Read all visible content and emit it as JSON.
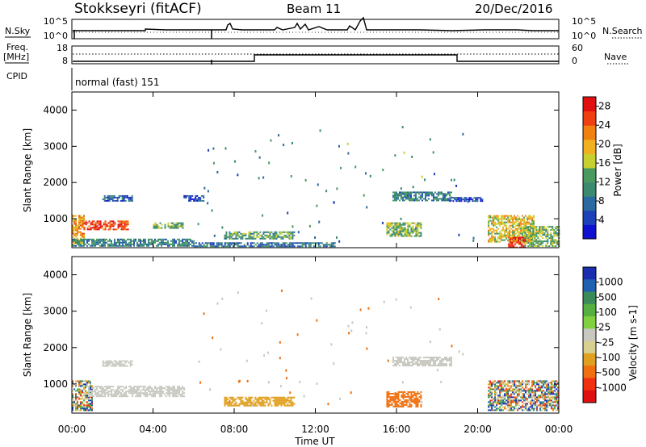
{
  "header": {
    "station": "Stokkseyri (fitACF)",
    "beam": "Beam 11",
    "date": "20/Dec/2016"
  },
  "status_panels": {
    "nsky_label": "N.Sky",
    "nsky_ticks": [
      "10^5",
      "10^0"
    ],
    "nsearch_label": "N.Search",
    "nsearch_ticks": [
      "10^5",
      "10^0"
    ],
    "freq_label_line1": "Freq.",
    "freq_label_line2": "[MHz]",
    "freq_ticks": [
      "18",
      "8"
    ],
    "nave_label": "Nave",
    "nave_ticks": [
      "60",
      "0"
    ],
    "cpid_label": "CPID",
    "cpid_text": "normal (fast) 151"
  },
  "colors": {
    "power_scale": [
      "#1010d0",
      "#1e40b8",
      "#2a6aa0",
      "#3a8a70",
      "#4a9a60",
      "#c8d030",
      "#f0b020",
      "#f08010",
      "#f04010",
      "#e01010"
    ],
    "velocity_scale": [
      "#1a2fb0",
      "#2060b0",
      "#3a8a5a",
      "#55b040",
      "#80d040",
      "#c8c8c0",
      "#d8d090",
      "#e0a020",
      "#f07010",
      "#f03010",
      "#e01010"
    ]
  },
  "chart_data": [
    {
      "type": "heatmap",
      "title": "Power",
      "xlabel": "",
      "ylabel": "Slant Range [km]",
      "x_ticks": [
        "00:00",
        "04:00",
        "08:00",
        "12:00",
        "16:00",
        "20:00",
        "00:00"
      ],
      "xlim_hours": [
        0,
        24
      ],
      "y_ticks": [
        1000,
        2000,
        3000,
        4000
      ],
      "ylim_km": [
        200,
        4500
      ],
      "colorbar_label": "Power [dB]",
      "colorbar_ticks": [
        4,
        8,
        12,
        16,
        20,
        24,
        28
      ],
      "colorbar_range": [
        0,
        30
      ],
      "regions": [
        {
          "t0": 0.0,
          "t1": 0.6,
          "r0": 300,
          "r1": 1100,
          "level": 20
        },
        {
          "t0": 0.5,
          "t1": 2.8,
          "r0": 700,
          "r1": 950,
          "level": 26
        },
        {
          "t0": 0.0,
          "t1": 6.0,
          "r0": 250,
          "r1": 450,
          "level": 10
        },
        {
          "t0": 1.5,
          "t1": 3.0,
          "r0": 1500,
          "r1": 1650,
          "level": 6
        },
        {
          "t0": 4.0,
          "t1": 5.5,
          "r0": 750,
          "r1": 900,
          "level": 14
        },
        {
          "t0": 5.5,
          "t1": 6.5,
          "r0": 1500,
          "r1": 1650,
          "level": 5
        },
        {
          "t0": 7.5,
          "t1": 11.0,
          "r0": 450,
          "r1": 650,
          "level": 12
        },
        {
          "t0": 6.0,
          "t1": 13.0,
          "r0": 250,
          "r1": 350,
          "level": 8
        },
        {
          "t0": 15.5,
          "t1": 17.2,
          "r0": 500,
          "r1": 900,
          "level": 14
        },
        {
          "t0": 15.8,
          "t1": 18.7,
          "r0": 1500,
          "r1": 1750,
          "level": 10
        },
        {
          "t0": 18.6,
          "t1": 20.2,
          "r0": 1500,
          "r1": 1600,
          "level": 5
        },
        {
          "t0": 20.5,
          "t1": 22.8,
          "r0": 350,
          "r1": 1100,
          "level": 18
        },
        {
          "t0": 21.5,
          "t1": 22.3,
          "r0": 200,
          "r1": 500,
          "level": 28
        },
        {
          "t0": 22.3,
          "t1": 24.0,
          "r0": 250,
          "r1": 800,
          "level": 14
        }
      ]
    },
    {
      "type": "heatmap",
      "title": "Velocity",
      "xlabel": "Time UT",
      "ylabel": "Slant Range [km]",
      "x_ticks": [
        "00:00",
        "04:00",
        "08:00",
        "12:00",
        "16:00",
        "20:00",
        "00:00"
      ],
      "xlim_hours": [
        0,
        24
      ],
      "y_ticks": [
        1000,
        2000,
        3000,
        4000
      ],
      "ylim_km": [
        200,
        4500
      ],
      "colorbar_label": "Velocity [m s-1]",
      "colorbar_ticks": [
        "1000",
        "500",
        "100",
        "25",
        "-25",
        "-100",
        "-500",
        "-1000"
      ],
      "regions": [
        {
          "t0": 0.0,
          "t1": 1.0,
          "r0": 300,
          "r1": 1100,
          "level": "mixed"
        },
        {
          "t0": 0.8,
          "t1": 5.5,
          "r0": 650,
          "r1": 950,
          "level": "0"
        },
        {
          "t0": 1.5,
          "t1": 3.0,
          "r0": 1500,
          "r1": 1650,
          "level": "0"
        },
        {
          "t0": 7.5,
          "t1": 11.0,
          "r0": 400,
          "r1": 650,
          "level": "-100"
        },
        {
          "t0": 15.5,
          "t1": 17.2,
          "r0": 400,
          "r1": 800,
          "level": "-200"
        },
        {
          "t0": 15.8,
          "t1": 18.7,
          "r0": 1500,
          "r1": 1750,
          "level": "0"
        },
        {
          "t0": 20.5,
          "t1": 24.0,
          "r0": 300,
          "r1": 1100,
          "level": "mixed"
        }
      ]
    }
  ]
}
